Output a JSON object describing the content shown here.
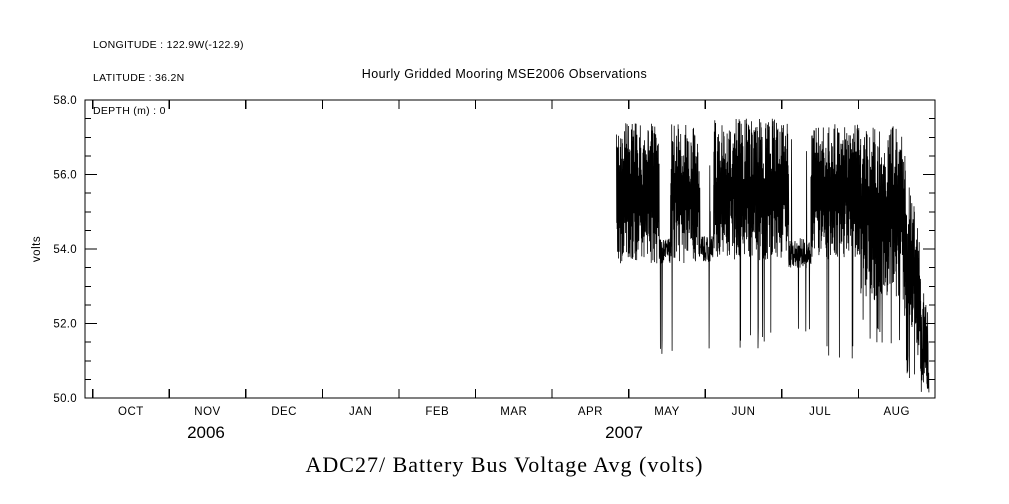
{
  "header": {
    "longitude": "LONGITUDE : 122.9W(-122.9)",
    "latitude": "LATITUDE : 36.2N",
    "depth": "DEPTH (m) : 0"
  },
  "colors": {
    "line": "#000000",
    "background": "#ffffff",
    "text": "#000000"
  },
  "chart_data": {
    "type": "line",
    "title": "Hourly Gridded Mooring MSE2006 Observations",
    "caption": "ADC27/ Battery Bus Voltage Avg (volts)",
    "series_name": "ADC27/ Battery Bus Voltage Avg",
    "units": "volts",
    "ylabel": "volts",
    "ylim": [
      50.0,
      58.0
    ],
    "y_major_ticks": [
      58.0,
      56.0,
      54.0,
      52.0,
      50.0
    ],
    "y_tick_labels": [
      "58.0",
      "56.0",
      "54.0",
      "52.0",
      "50.0"
    ],
    "y_minor_step": 0.5,
    "x_domain_months": [
      -0.1,
      11.0
    ],
    "month_labels": [
      "OCT",
      "NOV",
      "DEC",
      "JAN",
      "FEB",
      "MAR",
      "APR",
      "MAY",
      "JUN",
      "JUL",
      "AUG"
    ],
    "year_labels": [
      {
        "text": "2006",
        "t": 1.48
      },
      {
        "text": "2007",
        "t": 6.94
      }
    ],
    "grid": false,
    "legend": false,
    "coverage_note": "No data plotted from late Sep 2006 until mid-April 2007; noisy hourly voltage trace from mid-April through late August 2007.",
    "envelope_segments": [
      {
        "t0": 6.84,
        "t1": 7.4,
        "mode": "dense",
        "top": 57.4,
        "bottom": 53.6,
        "spike_low": 51.0,
        "spike_prob": 0.012
      },
      {
        "t0": 7.4,
        "t1": 7.55,
        "mode": "quiet",
        "level": 53.95,
        "amp": 0.35,
        "spike_low": 51.0,
        "spike_prob": 0.035,
        "up_high": 56.8,
        "up_prob": 0.02
      },
      {
        "t0": 7.55,
        "t1": 7.92,
        "mode": "dense",
        "top": 57.35,
        "bottom": 53.6,
        "spike_low": 50.9,
        "spike_prob": 0.012
      },
      {
        "t0": 7.92,
        "t1": 8.11,
        "mode": "quiet",
        "level": 54.0,
        "amp": 0.35,
        "spike_low": 51.2,
        "spike_prob": 0.035,
        "up_high": 56.5,
        "up_prob": 0.02
      },
      {
        "t0": 8.11,
        "t1": 9.09,
        "mode": "dense",
        "top": 57.5,
        "bottom": 53.7,
        "spike_low": 51.3,
        "spike_prob": 0.01
      },
      {
        "t0": 9.09,
        "t1": 9.38,
        "mode": "quiet",
        "level": 53.9,
        "amp": 0.4,
        "spike_low": 51.6,
        "spike_prob": 0.04,
        "up_high": 57.0,
        "up_prob": 0.03
      },
      {
        "t0": 9.38,
        "t1": 10.03,
        "mode": "dense",
        "top": 57.4,
        "bottom": 53.7,
        "spike_low": 51.0,
        "spike_prob": 0.012
      },
      {
        "t0": 10.03,
        "t1": 10.59,
        "mode": "dense",
        "top": 57.3,
        "bottom": 52.6,
        "spike_low": 51.4,
        "spike_prob": 0.045
      },
      {
        "t0": 10.59,
        "t1": 10.81,
        "mode": "decline",
        "top0": 56.8,
        "top1": 54.2,
        "bottom0": 52.2,
        "bottom1": 51.2,
        "spike_low": 50.5,
        "spike_prob": 0.06
      },
      {
        "t0": 10.81,
        "t1": 10.92,
        "mode": "decline",
        "top0": 53.5,
        "top1": 52.3,
        "bottom0": 50.6,
        "bottom1": 50.1,
        "spike_low": 50.1,
        "spike_prob": 0.1
      }
    ],
    "final_value": 50.15,
    "generator": {
      "seed": 1337,
      "points_per_month": 360
    }
  }
}
